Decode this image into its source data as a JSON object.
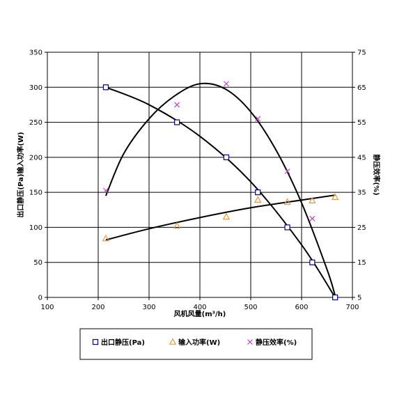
{
  "chart_data": {
    "type": "scatter",
    "xlabel": "风机风量(m³/h)",
    "ylabel_left": "出口静压(Pa)输入功率(W)",
    "ylabel_right": "静压效率(%)",
    "xlim": [
      100,
      700
    ],
    "xticks": [
      100,
      200,
      300,
      400,
      500,
      600,
      700
    ],
    "ylim_left": [
      0,
      350
    ],
    "yticks_left": [
      0,
      50,
      100,
      150,
      200,
      250,
      300,
      350
    ],
    "ylim_right": [
      5,
      75
    ],
    "yticks_right": [
      5,
      15,
      25,
      35,
      45,
      55,
      65,
      75
    ],
    "grid": true,
    "legend_position": "bottom",
    "series": [
      {
        "name": "出口静压(Pa)",
        "axis": "left",
        "marker": "square",
        "color": "#000080",
        "x": [
          215,
          355,
          452,
          514,
          572,
          621,
          666
        ],
        "y": [
          300,
          250,
          200,
          150,
          100,
          50,
          0
        ]
      },
      {
        "name": "输入功率(W)",
        "axis": "left",
        "marker": "triangle",
        "color": "#e69a4a",
        "x": [
          215,
          355,
          452,
          514,
          572,
          621,
          666
        ],
        "y": [
          84,
          102,
          115,
          139,
          136,
          138,
          143
        ]
      },
      {
        "name": "静压效率(%)",
        "axis": "right",
        "marker": "x",
        "color": "#c040c0",
        "x": [
          215,
          355,
          452,
          514,
          572,
          621
        ],
        "y": [
          35.5,
          60,
          66,
          56,
          41,
          27.5
        ]
      }
    ],
    "trendlines": [
      {
        "series": 0,
        "axis": "left",
        "x": [
          215,
          300,
          400,
          500,
          600,
          666
        ],
        "y": [
          300,
          275,
          230,
          165,
          75,
          0
        ]
      },
      {
        "series": 1,
        "axis": "left",
        "x": [
          215,
          300,
          400,
          500,
          600,
          666
        ],
        "y": [
          82,
          98,
          114,
          128,
          139,
          146
        ]
      },
      {
        "series": 2,
        "axis": "right",
        "x": [
          215,
          250,
          300,
          350,
          400,
          450,
          500,
          550,
          600,
          650,
          666
        ],
        "y": [
          34,
          46,
          56,
          62.5,
          66,
          64.5,
          58,
          47,
          32,
          13,
          5.5
        ]
      }
    ]
  }
}
